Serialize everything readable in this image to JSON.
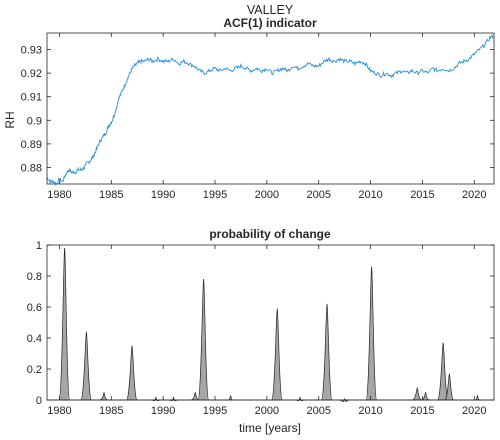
{
  "chart_data": [
    {
      "type": "line",
      "suptitle": "VALLEY",
      "title": "ACF(1) indicator",
      "xlabel": "",
      "ylabel": "RH",
      "xlim": [
        1978.8,
        2021.9
      ],
      "ylim": [
        0.873,
        0.937
      ],
      "xticks": [
        1980,
        1985,
        1990,
        1995,
        2000,
        2005,
        2010,
        2015,
        2020
      ],
      "yticks": [
        0.88,
        0.89,
        0.9,
        0.91,
        0.92,
        0.93
      ],
      "ytick_labels": [
        "0.88",
        "0.89",
        "0.9",
        "0.91",
        "0.92",
        "0.93"
      ],
      "grid": false,
      "color": "#2b8fd6",
      "series": [
        {
          "x": [
            1978.8,
            1979.1,
            1979.4,
            1979.7,
            1980.0,
            1980.3,
            1980.6,
            1980.9,
            1981.2,
            1981.5,
            1981.8,
            1982.1,
            1982.4,
            1982.7,
            1983.0,
            1983.3,
            1983.6,
            1983.9,
            1984.2,
            1984.5,
            1984.8,
            1985.1,
            1985.4,
            1985.7,
            1986.0,
            1986.3,
            1986.6,
            1986.9,
            1987.2,
            1987.5,
            1987.8,
            1988.2,
            1988.6,
            1989.0,
            1989.5,
            1990.0,
            1990.5,
            1991.0,
            1991.5,
            1992.0,
            1992.5,
            1993.0,
            1993.5,
            1994.0,
            1994.5,
            1995.0,
            1995.5,
            1996.0,
            1996.5,
            1997.0,
            1997.5,
            1998.0,
            1998.5,
            1999.0,
            1999.5,
            2000.0,
            2000.5,
            2001.0,
            2001.5,
            2002.0,
            2002.5,
            2003.0,
            2003.5,
            2004.0,
            2004.5,
            2005.0,
            2005.5,
            2006.0,
            2006.5,
            2007.0,
            2007.5,
            2008.0,
            2008.5,
            2009.0,
            2009.5,
            2010.0,
            2010.5,
            2011.0,
            2011.5,
            2012.0,
            2012.5,
            2013.0,
            2013.5,
            2014.0,
            2014.5,
            2015.0,
            2015.5,
            2016.0,
            2016.5,
            2017.0,
            2017.5,
            2018.0,
            2018.5,
            2019.0,
            2019.5,
            2020.0,
            2020.5,
            2021.0,
            2021.5,
            2021.9
          ],
          "y": [
            0.876,
            0.874,
            0.874,
            0.873,
            0.875,
            0.874,
            0.877,
            0.879,
            0.878,
            0.878,
            0.879,
            0.879,
            0.88,
            0.882,
            0.883,
            0.885,
            0.888,
            0.891,
            0.893,
            0.895,
            0.898,
            0.9,
            0.904,
            0.909,
            0.912,
            0.915,
            0.918,
            0.921,
            0.923,
            0.924,
            0.925,
            0.925,
            0.926,
            0.925,
            0.926,
            0.925,
            0.925,
            0.926,
            0.924,
            0.925,
            0.924,
            0.923,
            0.921,
            0.92,
            0.921,
            0.922,
            0.921,
            0.922,
            0.921,
            0.922,
            0.923,
            0.922,
            0.921,
            0.922,
            0.921,
            0.922,
            0.92,
            0.921,
            0.922,
            0.921,
            0.923,
            0.922,
            0.923,
            0.924,
            0.923,
            0.923,
            0.925,
            0.926,
            0.925,
            0.926,
            0.925,
            0.925,
            0.924,
            0.925,
            0.924,
            0.921,
            0.92,
            0.919,
            0.92,
            0.919,
            0.92,
            0.921,
            0.92,
            0.921,
            0.92,
            0.921,
            0.92,
            0.922,
            0.921,
            0.922,
            0.921,
            0.922,
            0.924,
            0.925,
            0.926,
            0.928,
            0.93,
            0.932,
            0.935,
            0.936
          ]
        }
      ]
    },
    {
      "type": "area",
      "title": "probability of change",
      "xlabel": "time [years]",
      "ylabel": "",
      "xlim": [
        1978.8,
        2021.9
      ],
      "ylim": [
        0,
        1
      ],
      "xticks": [
        1980,
        1985,
        1990,
        1995,
        2000,
        2005,
        2010,
        2015,
        2020
      ],
      "yticks": [
        0,
        0.2,
        0.4,
        0.6,
        0.8,
        1
      ],
      "ytick_labels": [
        "0",
        "0.2",
        "0.4",
        "0.6",
        "0.8",
        "1"
      ],
      "grid": false,
      "fill_color": "#a6a6a6",
      "peaks": [
        {
          "x": 1980.5,
          "y": 0.98
        },
        {
          "x": 1982.6,
          "y": 0.44
        },
        {
          "x": 1984.3,
          "y": 0.05
        },
        {
          "x": 1987.0,
          "y": 0.35
        },
        {
          "x": 1989.3,
          "y": 0.02
        },
        {
          "x": 1991.0,
          "y": 0.02
        },
        {
          "x": 1993.1,
          "y": 0.05
        },
        {
          "x": 1993.9,
          "y": 0.78
        },
        {
          "x": 1996.5,
          "y": 0.03
        },
        {
          "x": 2001.0,
          "y": 0.59
        },
        {
          "x": 2003.2,
          "y": 0.02
        },
        {
          "x": 2005.8,
          "y": 0.62
        },
        {
          "x": 2007.5,
          "y": 0.01
        },
        {
          "x": 2010.1,
          "y": 0.86
        },
        {
          "x": 2014.5,
          "y": 0.08
        },
        {
          "x": 2015.3,
          "y": 0.05
        },
        {
          "x": 2017.0,
          "y": 0.37
        },
        {
          "x": 2017.6,
          "y": 0.17
        },
        {
          "x": 2020.3,
          "y": 0.03
        }
      ]
    }
  ]
}
